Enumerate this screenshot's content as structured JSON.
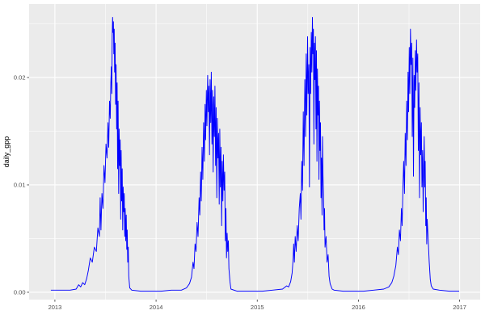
{
  "style": {
    "outer_bg": "#FFFFFF",
    "panel_bg": "#EBEBEB",
    "grid_major": "#FFFFFF",
    "grid_minor": "#FFFFFF",
    "tick_mark": "#333333",
    "tick_text": "#4D4D4D",
    "axis_title": "#000000",
    "line_color": "#0000FF"
  },
  "chart_data": {
    "type": "line",
    "title": "",
    "xlabel": "",
    "ylabel": "daily_gpp",
    "grid": true,
    "legend": "none",
    "xlim": [
      2012.745,
      2017.203
    ],
    "ylim": [
      -0.00068,
      0.02684
    ],
    "x_ticks": {
      "values": [
        2013,
        2014,
        2015,
        2016,
        2017
      ],
      "labels": [
        "2013",
        "2014",
        "2015",
        "2016",
        "2017"
      ]
    },
    "y_ticks": {
      "values": [
        0,
        0.01,
        0.02
      ],
      "labels": [
        "0.00",
        "0.01",
        "0.02"
      ]
    },
    "x_minor": [
      2013.5,
      2014.5,
      2015.5,
      2016.5
    ],
    "y_minor": [
      0.005,
      0.015,
      0.025
    ],
    "series": [
      {
        "name": "daily_gpp",
        "color": "#0000FF",
        "points": [
          [
            2012.96,
            0.0002
          ],
          [
            2013.05,
            0.0002
          ],
          [
            2013.15,
            0.0002
          ],
          [
            2013.21,
            0.0003
          ],
          [
            2013.235,
            0.0007
          ],
          [
            2013.255,
            0.0005
          ],
          [
            2013.275,
            0.0009
          ],
          [
            2013.295,
            0.0007
          ],
          [
            2013.315,
            0.0013
          ],
          [
            2013.33,
            0.002
          ],
          [
            2013.35,
            0.0032
          ],
          [
            2013.37,
            0.0028
          ],
          [
            2013.39,
            0.0042
          ],
          [
            2013.41,
            0.0038
          ],
          [
            2013.425,
            0.006
          ],
          [
            2013.44,
            0.0052
          ],
          [
            2013.447,
            0.0088
          ],
          [
            2013.455,
            0.0058
          ],
          [
            2013.465,
            0.0092
          ],
          [
            2013.475,
            0.0078
          ],
          [
            2013.485,
            0.0118
          ],
          [
            2013.495,
            0.0102
          ],
          [
            2013.505,
            0.0138
          ],
          [
            2013.515,
            0.0125
          ],
          [
            2013.525,
            0.0158
          ],
          [
            2013.532,
            0.0135
          ],
          [
            2013.54,
            0.0178
          ],
          [
            2013.547,
            0.0162
          ],
          [
            2013.553,
            0.0195
          ],
          [
            2013.558,
            0.021
          ],
          [
            2013.562,
            0.0185
          ],
          [
            2013.566,
            0.0238
          ],
          [
            2013.57,
            0.0256
          ],
          [
            2013.574,
            0.0242
          ],
          [
            2013.578,
            0.0252
          ],
          [
            2013.582,
            0.0222
          ],
          [
            2013.586,
            0.0245
          ],
          [
            2013.59,
            0.0205
          ],
          [
            2013.595,
            0.0232
          ],
          [
            2013.6,
            0.0175
          ],
          [
            2013.605,
            0.0212
          ],
          [
            2013.61,
            0.0152
          ],
          [
            2013.615,
            0.0195
          ],
          [
            2013.62,
            0.0115
          ],
          [
            2013.625,
            0.0178
          ],
          [
            2013.63,
            0.0092
          ],
          [
            2013.635,
            0.0152
          ],
          [
            2013.64,
            0.0118
          ],
          [
            2013.645,
            0.0142
          ],
          [
            2013.65,
            0.0068
          ],
          [
            2013.655,
            0.0132
          ],
          [
            2013.66,
            0.0085
          ],
          [
            2013.665,
            0.0115
          ],
          [
            2013.67,
            0.0058
          ],
          [
            2013.675,
            0.0098
          ],
          [
            2013.68,
            0.0075
          ],
          [
            2013.685,
            0.0092
          ],
          [
            2013.69,
            0.0052
          ],
          [
            2013.695,
            0.0078
          ],
          [
            2013.7,
            0.0048
          ],
          [
            2013.705,
            0.0072
          ],
          [
            2013.71,
            0.004
          ],
          [
            2013.715,
            0.0058
          ],
          [
            2013.72,
            0.0028
          ],
          [
            2013.725,
            0.0042
          ],
          [
            2013.73,
            0.0015
          ],
          [
            2013.74,
            0.0004
          ],
          [
            2013.76,
            0.0002
          ],
          [
            2013.85,
            0.0001
          ],
          [
            2013.95,
            0.0001
          ],
          [
            2014.05,
            0.0001
          ],
          [
            2014.15,
            0.0002
          ],
          [
            2014.25,
            0.0002
          ],
          [
            2014.3,
            0.0004
          ],
          [
            2014.33,
            0.0008
          ],
          [
            2014.35,
            0.0014
          ],
          [
            2014.365,
            0.0028
          ],
          [
            2014.375,
            0.0022
          ],
          [
            2014.385,
            0.0045
          ],
          [
            2014.395,
            0.0038
          ],
          [
            2014.405,
            0.0065
          ],
          [
            2014.415,
            0.0052
          ],
          [
            2014.425,
            0.0088
          ],
          [
            2014.432,
            0.0072
          ],
          [
            2014.44,
            0.0112
          ],
          [
            2014.447,
            0.0085
          ],
          [
            2014.455,
            0.0135
          ],
          [
            2014.462,
            0.0105
          ],
          [
            2014.47,
            0.0158
          ],
          [
            2014.477,
            0.0122
          ],
          [
            2014.484,
            0.0175
          ],
          [
            2014.49,
            0.0142
          ],
          [
            2014.497,
            0.0188
          ],
          [
            2014.503,
            0.0155
          ],
          [
            2014.51,
            0.0202
          ],
          [
            2014.516,
            0.0168
          ],
          [
            2014.522,
            0.0192
          ],
          [
            2014.528,
            0.0128
          ],
          [
            2014.534,
            0.0198
          ],
          [
            2014.54,
            0.0158
          ],
          [
            2014.546,
            0.0205
          ],
          [
            2014.552,
            0.0138
          ],
          [
            2014.558,
            0.0188
          ],
          [
            2014.564,
            0.0112
          ],
          [
            2014.57,
            0.0182
          ],
          [
            2014.576,
            0.0145
          ],
          [
            2014.582,
            0.0192
          ],
          [
            2014.588,
            0.0118
          ],
          [
            2014.594,
            0.0172
          ],
          [
            2014.6,
            0.0088
          ],
          [
            2014.606,
            0.0162
          ],
          [
            2014.612,
            0.0125
          ],
          [
            2014.618,
            0.0148
          ],
          [
            2014.624,
            0.0082
          ],
          [
            2014.63,
            0.0152
          ],
          [
            2014.636,
            0.0098
          ],
          [
            2014.642,
            0.0135
          ],
          [
            2014.648,
            0.0062
          ],
          [
            2014.654,
            0.0122
          ],
          [
            2014.66,
            0.0085
          ],
          [
            2014.666,
            0.0128
          ],
          [
            2014.672,
            0.0095
          ],
          [
            2014.678,
            0.0112
          ],
          [
            2014.684,
            0.0048
          ],
          [
            2014.69,
            0.0078
          ],
          [
            2014.696,
            0.0032
          ],
          [
            2014.702,
            0.0055
          ],
          [
            2014.708,
            0.0038
          ],
          [
            2014.714,
            0.0048
          ],
          [
            2014.72,
            0.0022
          ],
          [
            2014.73,
            0.001
          ],
          [
            2014.74,
            0.0003
          ],
          [
            2014.8,
            0.0001
          ],
          [
            2014.9,
            0.0001
          ],
          [
            2015.05,
            0.0001
          ],
          [
            2015.15,
            0.0002
          ],
          [
            2015.25,
            0.0003
          ],
          [
            2015.29,
            0.0006
          ],
          [
            2015.31,
            0.0005
          ],
          [
            2015.33,
            0.001
          ],
          [
            2015.345,
            0.0018
          ],
          [
            2015.355,
            0.0032
          ],
          [
            2015.36,
            0.0045
          ],
          [
            2015.367,
            0.0028
          ],
          [
            2015.375,
            0.0052
          ],
          [
            2015.385,
            0.0038
          ],
          [
            2015.395,
            0.0062
          ],
          [
            2015.405,
            0.0048
          ],
          [
            2015.415,
            0.0078
          ],
          [
            2015.425,
            0.0092
          ],
          [
            2015.432,
            0.0068
          ],
          [
            2015.44,
            0.0122
          ],
          [
            2015.447,
            0.0095
          ],
          [
            2015.455,
            0.0168
          ],
          [
            2015.462,
            0.0118
          ],
          [
            2015.47,
            0.0198
          ],
          [
            2015.477,
            0.0145
          ],
          [
            2015.484,
            0.0222
          ],
          [
            2015.49,
            0.0165
          ],
          [
            2015.497,
            0.0238
          ],
          [
            2015.503,
            0.0185
          ],
          [
            2015.51,
            0.0212
          ],
          [
            2015.516,
            0.0098
          ],
          [
            2015.522,
            0.0228
          ],
          [
            2015.528,
            0.0185
          ],
          [
            2015.534,
            0.0242
          ],
          [
            2015.54,
            0.0205
          ],
          [
            2015.545,
            0.0256
          ],
          [
            2015.55,
            0.0222
          ],
          [
            2015.555,
            0.0245
          ],
          [
            2015.56,
            0.0138
          ],
          [
            2015.565,
            0.0232
          ],
          [
            2015.57,
            0.0198
          ],
          [
            2015.575,
            0.0238
          ],
          [
            2015.58,
            0.0152
          ],
          [
            2015.585,
            0.0225
          ],
          [
            2015.59,
            0.0122
          ],
          [
            2015.595,
            0.0208
          ],
          [
            2015.6,
            0.0165
          ],
          [
            2015.605,
            0.0192
          ],
          [
            2015.61,
            0.0105
          ],
          [
            2015.615,
            0.0178
          ],
          [
            2015.62,
            0.0132
          ],
          [
            2015.625,
            0.0158
          ],
          [
            2015.63,
            0.0088
          ],
          [
            2015.635,
            0.0125
          ],
          [
            2015.64,
            0.0072
          ],
          [
            2015.645,
            0.0145
          ],
          [
            2015.65,
            0.0108
          ],
          [
            2015.655,
            0.0092
          ],
          [
            2015.66,
            0.0058
          ],
          [
            2015.665,
            0.0078
          ],
          [
            2015.67,
            0.0042
          ],
          [
            2015.68,
            0.0052
          ],
          [
            2015.69,
            0.0028
          ],
          [
            2015.7,
            0.0035
          ],
          [
            2015.71,
            0.0015
          ],
          [
            2015.72,
            0.0008
          ],
          [
            2015.74,
            0.0003
          ],
          [
            2015.76,
            0.0002
          ],
          [
            2015.85,
            0.0001
          ],
          [
            2015.95,
            0.0001
          ],
          [
            2016.05,
            0.0001
          ],
          [
            2016.15,
            0.0002
          ],
          [
            2016.25,
            0.0003
          ],
          [
            2016.3,
            0.0005
          ],
          [
            2016.33,
            0.0009
          ],
          [
            2016.35,
            0.0015
          ],
          [
            2016.37,
            0.0025
          ],
          [
            2016.385,
            0.0042
          ],
          [
            2016.395,
            0.0035
          ],
          [
            2016.405,
            0.0058
          ],
          [
            2016.415,
            0.0048
          ],
          [
            2016.425,
            0.0078
          ],
          [
            2016.432,
            0.0062
          ],
          [
            2016.44,
            0.0098
          ],
          [
            2016.447,
            0.0122
          ],
          [
            2016.455,
            0.0092
          ],
          [
            2016.462,
            0.0148
          ],
          [
            2016.47,
            0.0118
          ],
          [
            2016.477,
            0.0178
          ],
          [
            2016.484,
            0.0142
          ],
          [
            2016.49,
            0.0205
          ],
          [
            2016.496,
            0.0168
          ],
          [
            2016.502,
            0.0228
          ],
          [
            2016.508,
            0.0185
          ],
          [
            2016.514,
            0.0245
          ],
          [
            2016.52,
            0.0212
          ],
          [
            2016.526,
            0.0232
          ],
          [
            2016.532,
            0.0145
          ],
          [
            2016.538,
            0.0218
          ],
          [
            2016.544,
            0.0108
          ],
          [
            2016.55,
            0.0202
          ],
          [
            2016.556,
            0.0172
          ],
          [
            2016.562,
            0.0225
          ],
          [
            2016.568,
            0.0188
          ],
          [
            2016.574,
            0.0235
          ],
          [
            2016.58,
            0.0205
          ],
          [
            2016.586,
            0.0222
          ],
          [
            2016.592,
            0.0132
          ],
          [
            2016.598,
            0.0195
          ],
          [
            2016.604,
            0.0088
          ],
          [
            2016.61,
            0.0172
          ],
          [
            2016.616,
            0.0128
          ],
          [
            2016.622,
            0.0158
          ],
          [
            2016.628,
            0.0098
          ],
          [
            2016.634,
            0.0132
          ],
          [
            2016.64,
            0.0075
          ],
          [
            2016.645,
            0.0118
          ],
          [
            2016.65,
            0.0145
          ],
          [
            2016.655,
            0.0098
          ],
          [
            2016.66,
            0.0122
          ],
          [
            2016.665,
            0.0062
          ],
          [
            2016.67,
            0.0088
          ],
          [
            2016.675,
            0.0045
          ],
          [
            2016.68,
            0.0068
          ],
          [
            2016.69,
            0.0048
          ],
          [
            2016.7,
            0.0028
          ],
          [
            2016.71,
            0.0012
          ],
          [
            2016.72,
            0.0006
          ],
          [
            2016.74,
            0.0003
          ],
          [
            2016.8,
            0.0002
          ],
          [
            2016.9,
            0.0001
          ],
          [
            2016.995,
            0.0001
          ]
        ]
      }
    ]
  }
}
